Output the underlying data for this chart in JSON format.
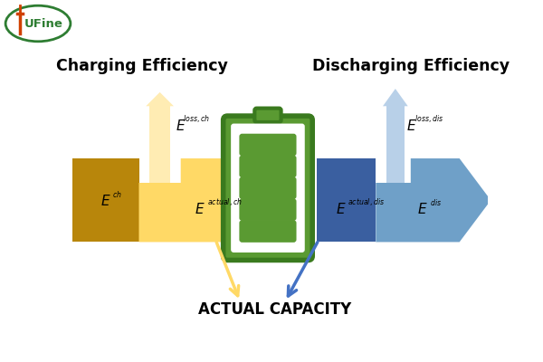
{
  "bg_color": "#ffffff",
  "title_charging": "Charging Efficiency",
  "title_discharging": "Discharging Efficiency",
  "label_actual_capacity": "ACTUAL CAPACITY",
  "color_dark_gold": "#B8860B",
  "color_light_gold": "#FFD966",
  "color_lighter_gold": "#FFECB3",
  "color_dark_blue": "#3A5FA0",
  "color_light_blue": "#6FA0C8",
  "color_lighter_blue": "#B8D0E8",
  "color_green_border": "#3A7A1E",
  "color_green_fill": "#5A9A32",
  "logo_color_green": "#2E7D32",
  "logo_color_orange": "#D04000",
  "arrow_blue": "#4472C4",
  "figw": 6.0,
  "figh": 4.0,
  "dpi": 100
}
